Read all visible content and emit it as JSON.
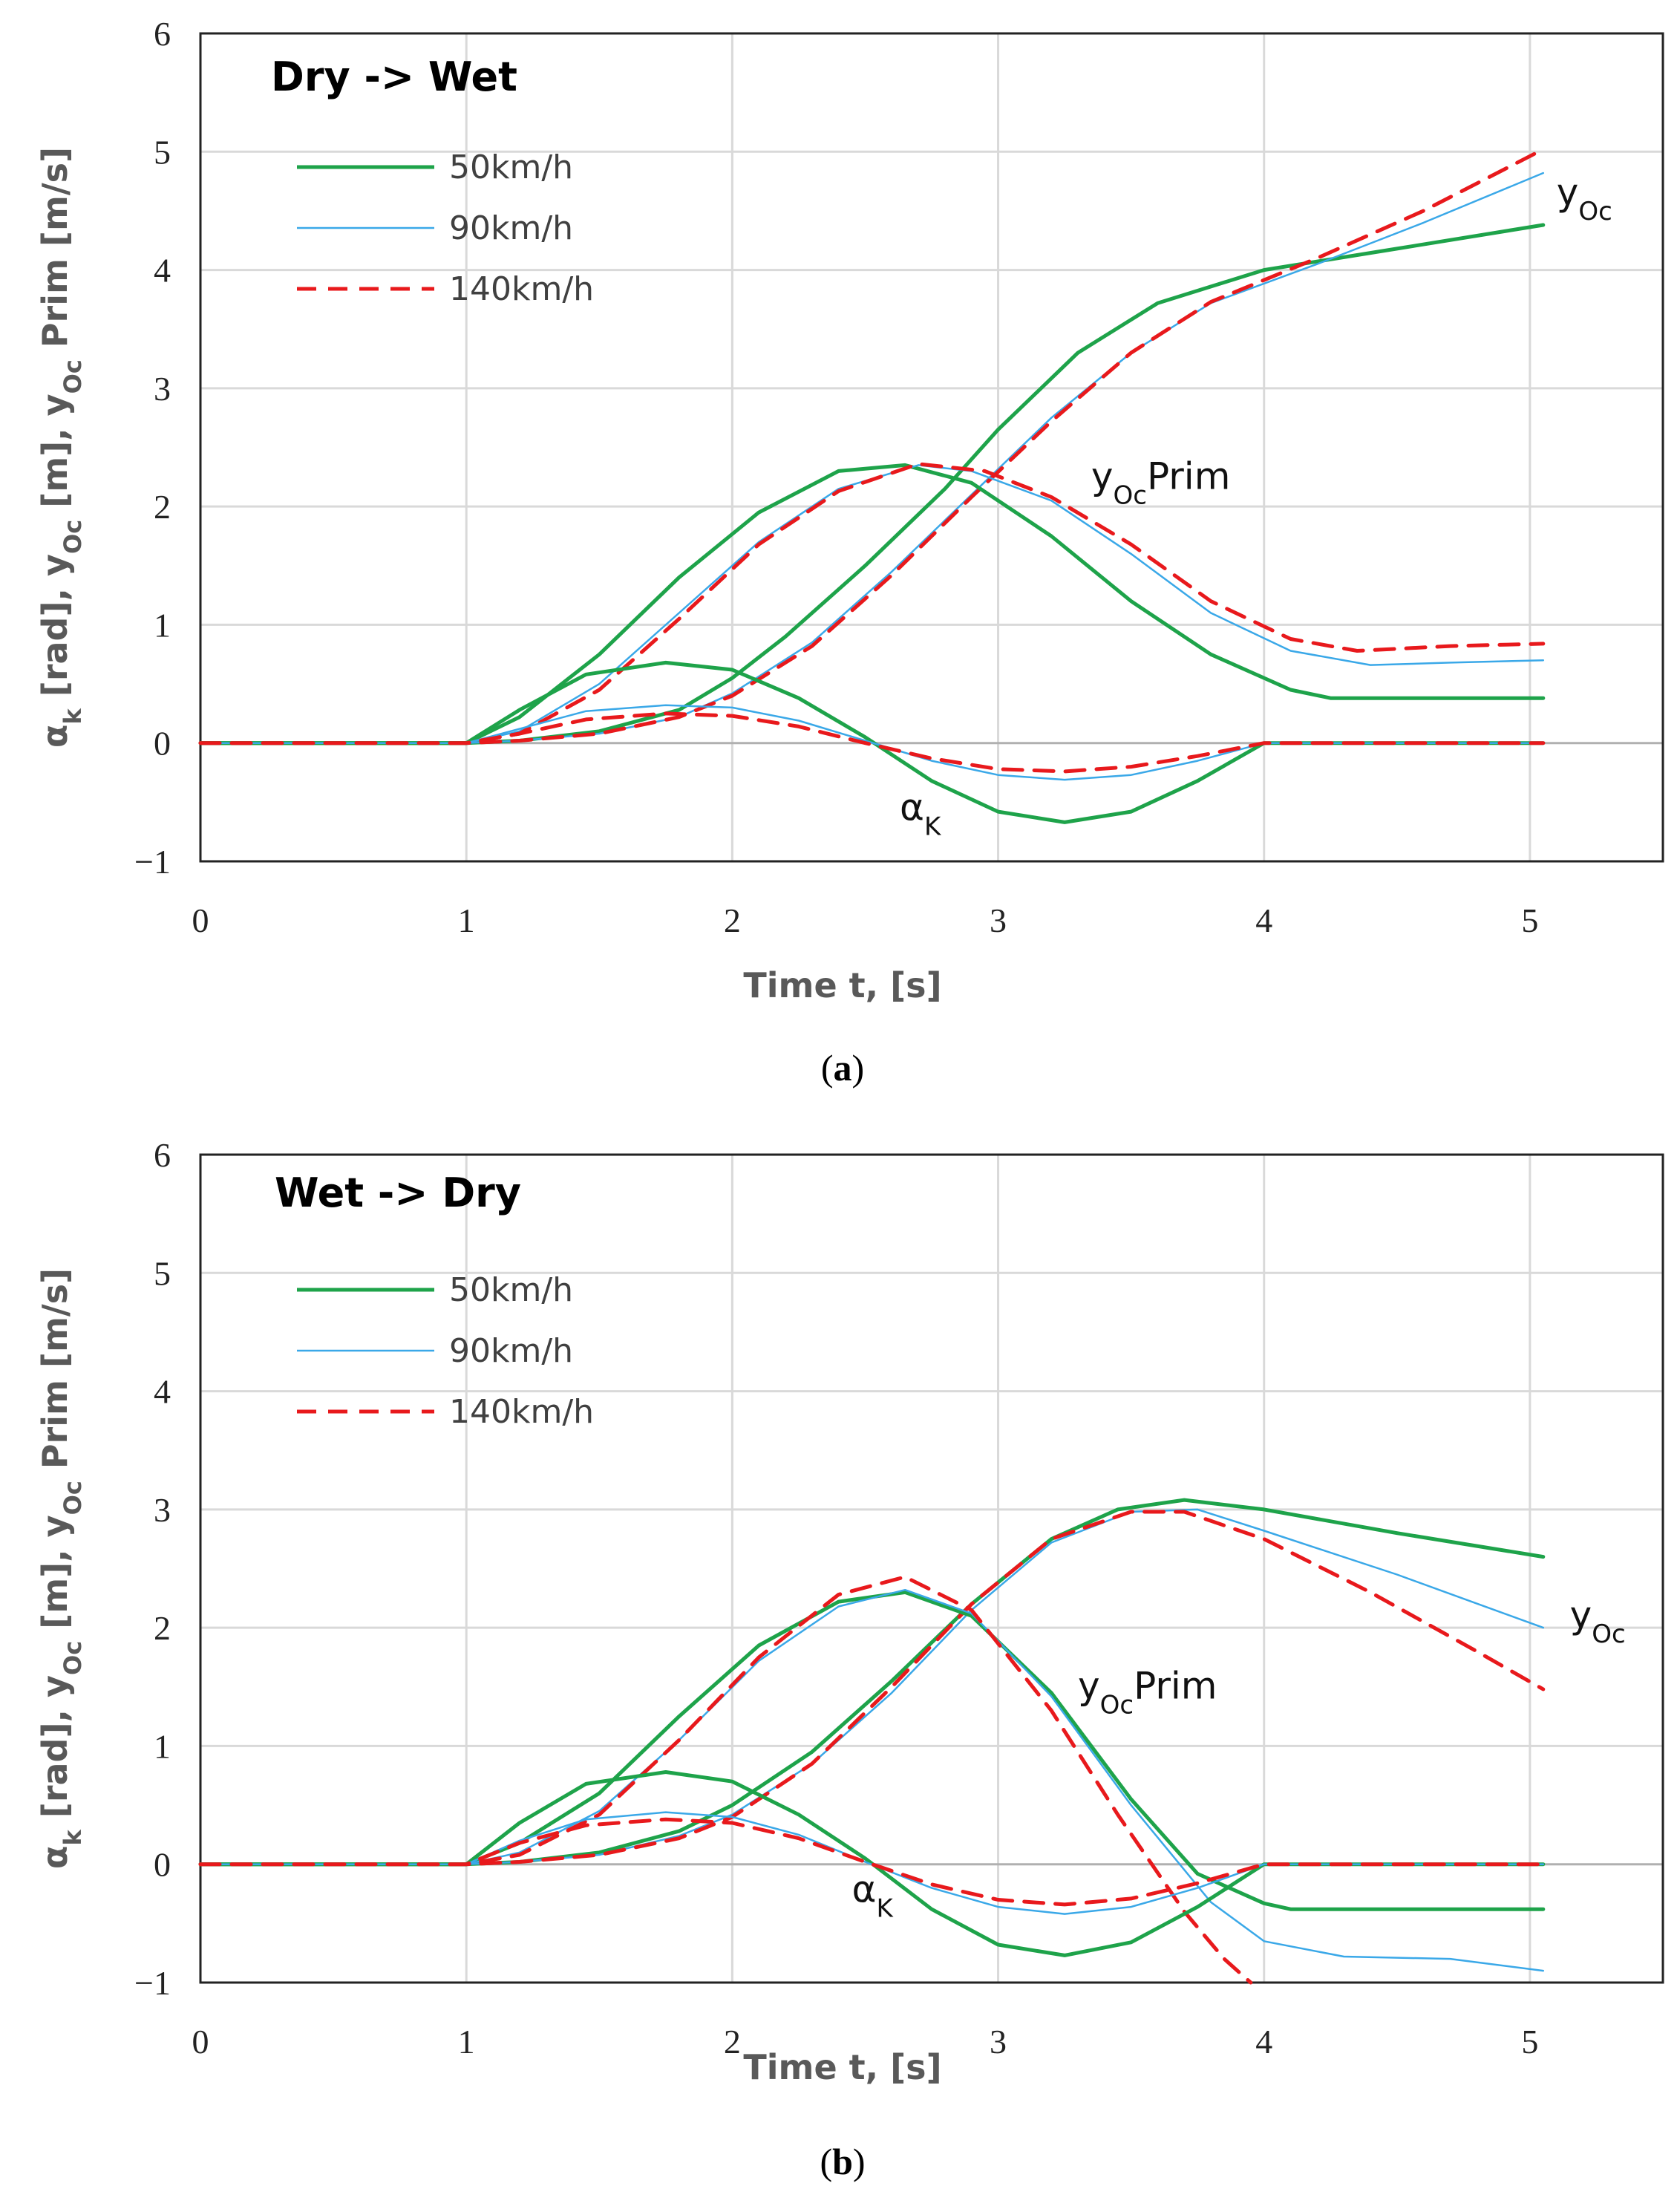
{
  "chart_data": [
    {
      "type": "line",
      "caption": "a",
      "title": "Dry -> Wet",
      "xlabel": "Time t, [s]",
      "ylabel": "α_k [rad], y_Oc [m], y_Oc Prim [m/s]",
      "xlim": [
        0,
        5.5
      ],
      "ylim": [
        -1,
        6
      ],
      "xticks": [
        0,
        1,
        2,
        3,
        4,
        5
      ],
      "yticks": [
        -1,
        0,
        1,
        2,
        3,
        4,
        5,
        6
      ],
      "grid": true,
      "legend_position": "top-left",
      "legend": [
        "50km/h",
        "90km/h",
        "140km/h"
      ],
      "annotations": [
        {
          "label": "y",
          "sub": "Oc",
          "suffix": "",
          "at": [
            5.1,
            4.55
          ]
        },
        {
          "label": "y",
          "sub": "Oc",
          "suffix": "Prim",
          "at": [
            3.35,
            2.15
          ]
        },
        {
          "label": "α",
          "sub": "K",
          "suffix": "",
          "at": [
            2.63,
            -0.65
          ]
        }
      ],
      "series": [
        {
          "name": "50km/h",
          "quantity": "y_Oc",
          "x": [
            0,
            1,
            1.2,
            1.5,
            1.8,
            2,
            2.2,
            2.5,
            2.8,
            3,
            3.3,
            3.6,
            4,
            4.5,
            5.05
          ],
          "y": [
            0,
            0,
            0.02,
            0.1,
            0.28,
            0.55,
            0.9,
            1.5,
            2.15,
            2.65,
            3.3,
            3.72,
            4.0,
            4.18,
            4.38
          ]
        },
        {
          "name": "90km/h",
          "quantity": "y_Oc",
          "x": [
            0,
            1,
            1.2,
            1.5,
            1.8,
            2,
            2.3,
            2.6,
            2.9,
            3.2,
            3.5,
            3.8,
            4.2,
            4.6,
            5.05
          ],
          "y": [
            0,
            0,
            0.02,
            0.08,
            0.22,
            0.42,
            0.85,
            1.45,
            2.1,
            2.75,
            3.3,
            3.72,
            4.05,
            4.4,
            4.82
          ]
        },
        {
          "name": "140km/h",
          "quantity": "y_Oc",
          "x": [
            0,
            1,
            1.2,
            1.5,
            1.8,
            2,
            2.3,
            2.6,
            2.9,
            3.2,
            3.5,
            3.8,
            4.2,
            4.6,
            5.05
          ],
          "y": [
            0,
            0,
            0.02,
            0.08,
            0.22,
            0.4,
            0.82,
            1.42,
            2.08,
            2.72,
            3.3,
            3.73,
            4.1,
            4.5,
            5.02
          ]
        },
        {
          "name": "50km/h",
          "quantity": "y_Oc Prim",
          "x": [
            0,
            1,
            1.2,
            1.5,
            1.8,
            2.1,
            2.4,
            2.65,
            2.9,
            3.2,
            3.5,
            3.8,
            4.1,
            4.25,
            4.6,
            5.05
          ],
          "y": [
            0,
            0,
            0.22,
            0.75,
            1.4,
            1.95,
            2.3,
            2.35,
            2.2,
            1.75,
            1.2,
            0.75,
            0.45,
            0.38,
            0.38,
            0.38
          ]
        },
        {
          "name": "90km/h",
          "quantity": "y_Oc Prim",
          "x": [
            0,
            1,
            1.2,
            1.5,
            1.8,
            2.1,
            2.4,
            2.7,
            2.9,
            3.2,
            3.5,
            3.8,
            4.1,
            4.4,
            4.7,
            5.05
          ],
          "y": [
            0,
            0,
            0.1,
            0.5,
            1.1,
            1.7,
            2.15,
            2.35,
            2.3,
            2.05,
            1.6,
            1.1,
            0.78,
            0.66,
            0.68,
            0.7
          ]
        },
        {
          "name": "140km/h",
          "quantity": "y_Oc Prim",
          "x": [
            0,
            1,
            1.2,
            1.5,
            1.8,
            2.1,
            2.4,
            2.7,
            2.95,
            3.2,
            3.5,
            3.8,
            4.1,
            4.35,
            4.7,
            5.05
          ],
          "y": [
            0,
            0,
            0.08,
            0.45,
            1.05,
            1.68,
            2.13,
            2.36,
            2.3,
            2.08,
            1.68,
            1.2,
            0.88,
            0.78,
            0.82,
            0.84
          ]
        },
        {
          "name": "50km/h",
          "quantity": "α_K",
          "x": [
            0,
            1,
            1.2,
            1.45,
            1.75,
            2,
            2.25,
            2.5,
            2.75,
            3,
            3.25,
            3.5,
            3.75,
            4,
            4.5,
            5.05
          ],
          "y": [
            0,
            0,
            0.28,
            0.58,
            0.68,
            0.62,
            0.38,
            0.05,
            -0.32,
            -0.58,
            -0.67,
            -0.58,
            -0.32,
            0,
            0,
            0
          ]
        },
        {
          "name": "90km/h",
          "quantity": "α_K",
          "x": [
            0,
            1,
            1.2,
            1.45,
            1.75,
            2,
            2.25,
            2.5,
            2.75,
            3,
            3.25,
            3.5,
            3.75,
            4,
            4.5,
            5.05
          ],
          "y": [
            0,
            0,
            0.12,
            0.27,
            0.32,
            0.3,
            0.19,
            0.02,
            -0.15,
            -0.27,
            -0.31,
            -0.27,
            -0.15,
            0,
            0,
            0
          ]
        },
        {
          "name": "140km/h",
          "quantity": "α_K",
          "x": [
            0,
            1,
            1.2,
            1.45,
            1.75,
            2,
            2.25,
            2.5,
            2.75,
            3,
            3.25,
            3.5,
            3.75,
            4,
            4.5,
            5.05
          ],
          "y": [
            0,
            0,
            0.08,
            0.2,
            0.25,
            0.23,
            0.14,
            0.0,
            -0.13,
            -0.22,
            -0.24,
            -0.2,
            -0.11,
            0,
            0,
            0
          ]
        }
      ]
    },
    {
      "type": "line",
      "caption": "b",
      "title": "Wet -> Dry",
      "xlabel": "Time t, [s]",
      "ylabel": "α_k [rad], y_Oc [m], y_Oc Prim [m/s]",
      "xlim": [
        0,
        5.5
      ],
      "ylim": [
        -1,
        6
      ],
      "xticks": [
        0,
        1,
        2,
        3,
        4,
        5
      ],
      "yticks": [
        -1,
        0,
        1,
        2,
        3,
        4,
        5,
        6
      ],
      "grid": true,
      "legend_position": "top-left",
      "legend": [
        "50km/h",
        "90km/h",
        "140km/h"
      ],
      "annotations": [
        {
          "label": "y",
          "sub": "Oc",
          "suffix": "",
          "at": [
            5.15,
            2.0
          ]
        },
        {
          "label": "y",
          "sub": "Oc",
          "suffix": "Prim",
          "at": [
            3.3,
            1.4
          ]
        },
        {
          "label": "α",
          "sub": "K",
          "suffix": "",
          "at": [
            2.45,
            -0.32
          ]
        }
      ],
      "series": [
        {
          "name": "50km/h",
          "quantity": "y_Oc",
          "x": [
            0,
            1,
            1.2,
            1.5,
            1.8,
            2,
            2.3,
            2.6,
            2.9,
            3.2,
            3.45,
            3.7,
            4,
            4.5,
            5.05
          ],
          "y": [
            0,
            0,
            0.02,
            0.1,
            0.28,
            0.5,
            0.95,
            1.55,
            2.2,
            2.75,
            3.0,
            3.08,
            3.0,
            2.8,
            2.6
          ]
        },
        {
          "name": "90km/h",
          "quantity": "y_Oc",
          "x": [
            0,
            1,
            1.2,
            1.5,
            1.8,
            2,
            2.3,
            2.6,
            2.9,
            3.2,
            3.5,
            3.75,
            4,
            4.5,
            5.05
          ],
          "y": [
            0,
            0,
            0.02,
            0.08,
            0.24,
            0.42,
            0.85,
            1.45,
            2.15,
            2.72,
            2.98,
            3.0,
            2.82,
            2.45,
            2.0
          ]
        },
        {
          "name": "140km/h",
          "quantity": "y_Oc",
          "x": [
            0,
            1,
            1.2,
            1.5,
            1.8,
            2,
            2.3,
            2.6,
            2.9,
            3.2,
            3.5,
            3.7,
            4,
            4.4,
            4.8,
            5.05
          ],
          "y": [
            0,
            0,
            0.02,
            0.08,
            0.22,
            0.4,
            0.85,
            1.5,
            2.2,
            2.75,
            2.98,
            2.98,
            2.75,
            2.3,
            1.8,
            1.48
          ]
        },
        {
          "name": "50km/h",
          "quantity": "y_Oc Prim",
          "x": [
            0,
            1,
            1.2,
            1.5,
            1.8,
            2.1,
            2.4,
            2.65,
            2.9,
            3.2,
            3.5,
            3.75,
            4,
            4.1,
            4.5,
            5.05
          ],
          "y": [
            0,
            0,
            0.18,
            0.6,
            1.25,
            1.85,
            2.22,
            2.3,
            2.1,
            1.45,
            0.55,
            -0.08,
            -0.33,
            -0.38,
            -0.38,
            -0.38
          ]
        },
        {
          "name": "90km/h",
          "quantity": "y_Oc Prim",
          "x": [
            0,
            1,
            1.2,
            1.5,
            1.8,
            2.1,
            2.4,
            2.65,
            2.9,
            3.2,
            3.5,
            3.8,
            4,
            4.3,
            4.7,
            5.05
          ],
          "y": [
            0,
            0,
            0.1,
            0.45,
            1.05,
            1.72,
            2.18,
            2.32,
            2.12,
            1.42,
            0.5,
            -0.32,
            -0.65,
            -0.78,
            -0.8,
            -0.9
          ]
        },
        {
          "name": "140km/h",
          "quantity": "y_Oc Prim",
          "x": [
            0,
            1,
            1.2,
            1.5,
            1.8,
            2.1,
            2.4,
            2.65,
            2.9,
            3.2,
            3.45,
            3.7,
            3.85,
            3.95
          ],
          "y": [
            0,
            0,
            0.08,
            0.42,
            1.05,
            1.75,
            2.28,
            2.43,
            2.15,
            1.3,
            0.42,
            -0.4,
            -0.8,
            -1.0
          ]
        },
        {
          "name": "50km/h",
          "quantity": "α_K",
          "x": [
            0,
            1,
            1.2,
            1.45,
            1.75,
            2,
            2.25,
            2.5,
            2.75,
            3,
            3.25,
            3.5,
            3.75,
            4,
            4.5,
            5.05
          ],
          "y": [
            0,
            0,
            0.35,
            0.68,
            0.78,
            0.7,
            0.42,
            0.05,
            -0.38,
            -0.68,
            -0.77,
            -0.66,
            -0.36,
            0,
            0,
            0
          ]
        },
        {
          "name": "90km/h",
          "quantity": "α_K",
          "x": [
            0,
            1,
            1.2,
            1.45,
            1.75,
            2,
            2.25,
            2.5,
            2.75,
            3,
            3.25,
            3.5,
            3.75,
            4,
            4.5,
            5.05
          ],
          "y": [
            0,
            0,
            0.2,
            0.38,
            0.44,
            0.4,
            0.25,
            0.02,
            -0.2,
            -0.36,
            -0.42,
            -0.36,
            -0.2,
            0,
            0,
            0
          ]
        },
        {
          "name": "140km/h",
          "quantity": "α_K",
          "x": [
            0,
            1,
            1.2,
            1.45,
            1.75,
            2,
            2.25,
            2.5,
            2.75,
            3,
            3.25,
            3.5,
            3.75,
            4,
            4.5,
            5.05
          ],
          "y": [
            0,
            0,
            0.18,
            0.33,
            0.38,
            0.35,
            0.22,
            0.02,
            -0.17,
            -0.3,
            -0.34,
            -0.29,
            -0.16,
            0,
            0,
            0
          ]
        }
      ]
    }
  ],
  "style": {
    "colors": {
      "50km/h": "#1ea34a",
      "90km/h": "#3aa8e8",
      "140km/h": "#e8191c"
    },
    "grid_color": "#d9d9d9",
    "zero_line_color": "#b0b0b0"
  }
}
